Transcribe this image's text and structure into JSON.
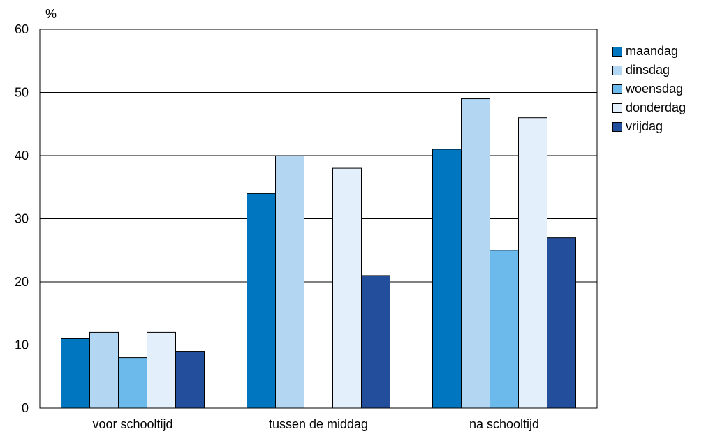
{
  "chart_data": {
    "type": "bar",
    "ylabel": "%",
    "ylim": [
      0,
      60
    ],
    "yticks": [
      0,
      10,
      20,
      30,
      40,
      50,
      60
    ],
    "categories": [
      "voor schooltijd",
      "tussen de middag",
      "na schooltijd"
    ],
    "series": [
      {
        "name": "maandag",
        "color": "#0076c0",
        "values": [
          11,
          34,
          41
        ]
      },
      {
        "name": "dinsdag",
        "color": "#b3d7f2",
        "values": [
          12,
          40,
          49
        ]
      },
      {
        "name": "woensdag",
        "color": "#6cb9ec",
        "values": [
          8,
          0,
          25
        ]
      },
      {
        "name": "donderdag",
        "color": "#e3f0fb",
        "values": [
          12,
          38,
          46
        ]
      },
      {
        "name": "vrijdag",
        "color": "#234e9c",
        "values": [
          9,
          21,
          27
        ]
      }
    ],
    "grid": true,
    "legend_position": "right"
  }
}
